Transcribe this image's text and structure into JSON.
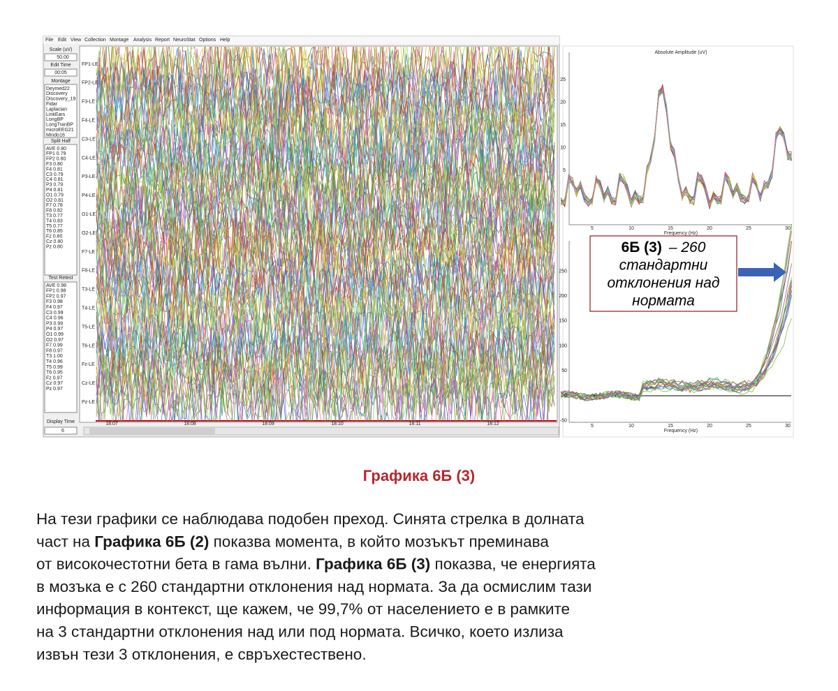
{
  "app": {
    "menu": [
      "File",
      "Edit",
      "View",
      "Collection",
      "Montage",
      "Analysis",
      "Report",
      "NeuroStat",
      "Options",
      "Help"
    ],
    "scale_label": "Scale (uV)",
    "scale_value": "50.00",
    "edit_time_label": "Edit Time",
    "edit_time_value": "00:05",
    "montage_label": "Montage",
    "montages": [
      "Deymed22",
      "Discovery",
      "Discovery_19",
      "Fidar",
      "Laplacian",
      "LinkEars",
      "LongBP",
      "LongTranBP",
      "microEEG21",
      "Mindo16"
    ],
    "split_half_label": "Split Half",
    "split_half": [
      "AVE 0.80",
      "FP1 0.79",
      "FP2 0.80",
      "F3 0.80",
      "F4 0.81",
      "C3 0.79",
      "C4 0.81",
      "P3 0.79",
      "P4 0.81",
      "O1 0.79",
      "O2 0.81",
      "F7 0.78",
      "F8 0.82",
      "T3 0.77",
      "T4 0.83",
      "T5 0.77",
      "T6 0.85",
      "Fz 0.80",
      "Cz 0.80",
      "Pz 0.80"
    ],
    "test_retest_label": "Test Retest",
    "test_retest": [
      "AVE 0.98",
      "FP1 0.98",
      "FP2 0.97",
      "F3 0.98",
      "F4 0.97",
      "C3 0.99",
      "C4 0.96",
      "P3 0.99",
      "P4 0.97",
      "O1 0.99",
      "O2 0.97",
      "F7 0.99",
      "F8 0.97",
      "T3 1.00",
      "T4 0.96",
      "T5 0.99",
      "T6 0.95",
      "Fz 0.97",
      "Cz 0.97",
      "Pz 0.97"
    ],
    "display_time_label": "Display Time",
    "display_time_value": "6",
    "channels": [
      "FP1-LE",
      "FP2-LE",
      "F3-LE",
      "F4-LE",
      "C3-LE",
      "C4-LE",
      "P3-LE",
      "P4-LE",
      "O1-LE",
      "O2-LE",
      "F7-LE",
      "F8-LE",
      "T3-LE",
      "T4-LE",
      "T5-LE",
      "T6-LE",
      "Fz-LE",
      "Cz-LE",
      "Pz-LE"
    ],
    "times": [
      "18:07",
      "18:08",
      "18:09",
      "18:10",
      "18:11",
      "18:12"
    ]
  },
  "top_chart": {
    "title": "Absolute Amplitude (uV)",
    "yticks": [
      5,
      10,
      15,
      20,
      25
    ],
    "xticks": [
      5,
      10,
      15,
      20,
      25,
      30
    ],
    "xlabel": "Frequency (Hz)"
  },
  "bottom_chart": {
    "yticks": [
      -50,
      0,
      50,
      100,
      150,
      200,
      250
    ],
    "xticks": [
      5,
      10,
      15,
      20,
      25,
      30
    ],
    "xlabel": "Frequency (Hz)"
  },
  "callout": {
    "bold": "6Б (3)",
    "lines": [
      "– 260",
      "стандартни",
      "отклонения над",
      "нормата"
    ]
  },
  "caption": "Графика 6Б (3)",
  "paragraph": {
    "lines": [
      [
        "На тези графики се наблюдава подобен преход. Синята стрелка в долната"
      ],
      [
        "част на ",
        {
          "text": "Графика 6Б (2)",
          "bold": true
        },
        " показва момента, в който мозъкът преминава"
      ],
      [
        "от високочестотни бета в гама вълни. ",
        {
          "text": "Графика 6Б (3)",
          "bold": true
        },
        " показва, че енергията"
      ],
      [
        "в мозъка е с 260 стандартни отклонения над нормата. За да осмислим тази"
      ],
      [
        "информация в контекст, ще кажем, че 99,7% от населението е в рамките"
      ],
      [
        "на 3 стандартни отклонения над или под нормата. Всичко, което излиза"
      ],
      [
        "извън тези 3 отклонения, е свръхестествено."
      ]
    ]
  }
}
